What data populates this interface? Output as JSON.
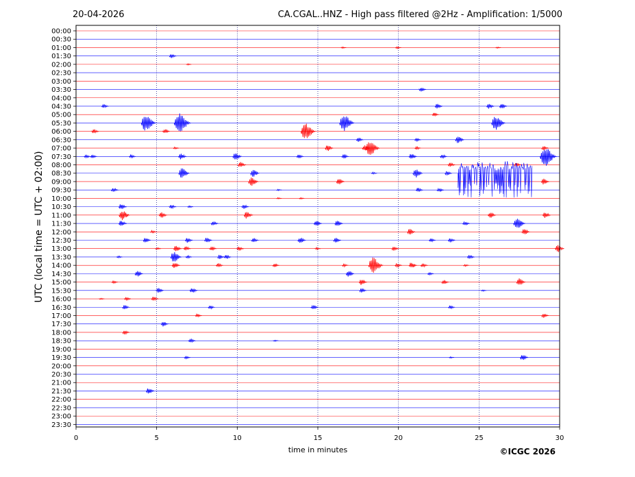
{
  "chart_data": {
    "type": "line",
    "date": "20-04-2026",
    "title": "CA.CGAL..HNZ - High pass filtered @2Hz - Amplification: 1/5000",
    "xlabel": "time in minutes",
    "ylabel": "UTC (local time = UTC + 02:00)",
    "copyright": "©ICGC 2026",
    "xlim": [
      0,
      30
    ],
    "x_ticks": [
      0,
      5,
      10,
      15,
      20,
      25,
      30
    ],
    "y_ticks": [
      "00:00",
      "00:30",
      "01:00",
      "01:30",
      "02:00",
      "02:30",
      "03:00",
      "03:30",
      "04:00",
      "04:30",
      "05:00",
      "05:30",
      "06:00",
      "06:30",
      "07:00",
      "07:30",
      "08:00",
      "08:30",
      "09:00",
      "09:30",
      "10:00",
      "10:30",
      "11:00",
      "11:30",
      "12:00",
      "12:30",
      "13:00",
      "13:30",
      "14:00",
      "14:30",
      "15:00",
      "15:30",
      "16:00",
      "16:30",
      "17:00",
      "17:30",
      "18:00",
      "18:30",
      "19:00",
      "19:30",
      "20:00",
      "20:30",
      "21:00",
      "21:30",
      "22:00",
      "22:30",
      "23:00",
      "23:30"
    ],
    "grid": {
      "x": true,
      "y": false
    },
    "trace_colors": [
      "#ff0000",
      "#0000ff"
    ],
    "events": [
      {
        "row": "01:00",
        "t": 16.6,
        "a": 2
      },
      {
        "row": "01:00",
        "t": 20.0,
        "a": 3
      },
      {
        "row": "01:00",
        "t": 26.2,
        "a": 2
      },
      {
        "row": "01:30",
        "t": 6.0,
        "a": 6
      },
      {
        "row": "02:00",
        "t": 7.0,
        "a": 2
      },
      {
        "row": "03:30",
        "t": 21.5,
        "a": 6
      },
      {
        "row": "04:30",
        "t": 1.8,
        "a": 6
      },
      {
        "row": "04:30",
        "t": 22.5,
        "a": 7
      },
      {
        "row": "04:30",
        "t": 25.7,
        "a": 7
      },
      {
        "row": "04:30",
        "t": 26.5,
        "a": 7
      },
      {
        "row": "05:00",
        "t": 22.3,
        "a": 5
      },
      {
        "row": "05:30",
        "t": 4.5,
        "a": 22
      },
      {
        "row": "05:30",
        "t": 6.6,
        "a": 26
      },
      {
        "row": "05:30",
        "t": 16.8,
        "a": 22
      },
      {
        "row": "05:30",
        "t": 26.2,
        "a": 20
      },
      {
        "row": "06:00",
        "t": 1.2,
        "a": 6
      },
      {
        "row": "06:00",
        "t": 5.6,
        "a": 6
      },
      {
        "row": "06:00",
        "t": 14.4,
        "a": 22
      },
      {
        "row": "06:30",
        "t": 17.6,
        "a": 6
      },
      {
        "row": "06:30",
        "t": 21.2,
        "a": 5
      },
      {
        "row": "06:30",
        "t": 23.8,
        "a": 10
      },
      {
        "row": "07:00",
        "t": 6.2,
        "a": 3
      },
      {
        "row": "07:00",
        "t": 15.7,
        "a": 8
      },
      {
        "row": "07:00",
        "t": 18.0,
        "a": 8
      },
      {
        "row": "07:00",
        "t": 18.4,
        "a": 20
      },
      {
        "row": "07:00",
        "t": 21.2,
        "a": 4
      },
      {
        "row": "07:00",
        "t": 29.1,
        "a": 6
      },
      {
        "row": "07:30",
        "t": 0.7,
        "a": 5
      },
      {
        "row": "07:30",
        "t": 1.1,
        "a": 5
      },
      {
        "row": "07:30",
        "t": 3.5,
        "a": 5
      },
      {
        "row": "07:30",
        "t": 6.6,
        "a": 8
      },
      {
        "row": "07:30",
        "t": 10.0,
        "a": 10
      },
      {
        "row": "07:30",
        "t": 13.9,
        "a": 6
      },
      {
        "row": "07:30",
        "t": 16.7,
        "a": 6
      },
      {
        "row": "07:30",
        "t": 20.9,
        "a": 8
      },
      {
        "row": "07:30",
        "t": 22.8,
        "a": 6
      },
      {
        "row": "07:30",
        "t": 29.3,
        "a": 26
      },
      {
        "row": "08:00",
        "t": 10.3,
        "a": 8
      },
      {
        "row": "08:00",
        "t": 23.3,
        "a": 6
      },
      {
        "row": "08:00",
        "t": 27.4,
        "a": 6
      },
      {
        "row": "08:30",
        "t": 6.7,
        "a": 14
      },
      {
        "row": "08:30",
        "t": 11.1,
        "a": 10
      },
      {
        "row": "08:30",
        "t": 18.5,
        "a": 3
      },
      {
        "row": "08:30",
        "t": 21.2,
        "a": 12
      },
      {
        "row": "08:30",
        "t": 23.1,
        "a": 6
      },
      {
        "row": "09:00",
        "t": 11.0,
        "a": 12
      },
      {
        "row": "09:00",
        "t": 16.4,
        "a": 8
      },
      {
        "row": "09:00",
        "t": 29.1,
        "a": 8
      },
      {
        "row": "09:30",
        "t": 2.4,
        "a": 6
      },
      {
        "row": "09:30",
        "t": 12.6,
        "a": 2
      },
      {
        "row": "09:30",
        "t": 21.3,
        "a": 6
      },
      {
        "row": "09:30",
        "t": 22.6,
        "a": 6
      },
      {
        "row": "10:00",
        "t": 12.6,
        "a": 2
      },
      {
        "row": "10:00",
        "t": 14.0,
        "a": 2
      },
      {
        "row": "10:30",
        "t": 2.9,
        "a": 8
      },
      {
        "row": "10:30",
        "t": 6.0,
        "a": 6
      },
      {
        "row": "10:30",
        "t": 7.1,
        "a": 3
      },
      {
        "row": "10:30",
        "t": 10.5,
        "a": 6
      },
      {
        "row": "11:00",
        "t": 3.0,
        "a": 14
      },
      {
        "row": "11:00",
        "t": 5.4,
        "a": 8
      },
      {
        "row": "11:00",
        "t": 10.7,
        "a": 10
      },
      {
        "row": "11:00",
        "t": 25.8,
        "a": 8
      },
      {
        "row": "11:00",
        "t": 29.2,
        "a": 8
      },
      {
        "row": "11:30",
        "t": 2.9,
        "a": 8
      },
      {
        "row": "11:30",
        "t": 8.6,
        "a": 6
      },
      {
        "row": "11:30",
        "t": 15.0,
        "a": 8
      },
      {
        "row": "11:30",
        "t": 16.3,
        "a": 8
      },
      {
        "row": "11:30",
        "t": 24.2,
        "a": 6
      },
      {
        "row": "11:30",
        "t": 27.5,
        "a": 16
      },
      {
        "row": "12:00",
        "t": 4.8,
        "a": 4
      },
      {
        "row": "12:00",
        "t": 20.8,
        "a": 8
      },
      {
        "row": "12:00",
        "t": 27.9,
        "a": 8
      },
      {
        "row": "12:30",
        "t": 4.4,
        "a": 7
      },
      {
        "row": "12:30",
        "t": 7.0,
        "a": 7
      },
      {
        "row": "12:30",
        "t": 8.2,
        "a": 7
      },
      {
        "row": "12:30",
        "t": 11.1,
        "a": 6
      },
      {
        "row": "12:30",
        "t": 14.0,
        "a": 8
      },
      {
        "row": "12:30",
        "t": 16.2,
        "a": 7
      },
      {
        "row": "12:30",
        "t": 22.1,
        "a": 5
      },
      {
        "row": "12:30",
        "t": 23.3,
        "a": 6
      },
      {
        "row": "13:00",
        "t": 5.1,
        "a": 3
      },
      {
        "row": "13:00",
        "t": 6.3,
        "a": 8
      },
      {
        "row": "13:00",
        "t": 6.9,
        "a": 6
      },
      {
        "row": "13:00",
        "t": 8.5,
        "a": 6
      },
      {
        "row": "13:00",
        "t": 10.2,
        "a": 6
      },
      {
        "row": "13:00",
        "t": 15.0,
        "a": 3
      },
      {
        "row": "13:00",
        "t": 19.8,
        "a": 6
      },
      {
        "row": "13:00",
        "t": 30.0,
        "a": 10
      },
      {
        "row": "13:30",
        "t": 2.7,
        "a": 3
      },
      {
        "row": "13:30",
        "t": 6.2,
        "a": 14
      },
      {
        "row": "13:30",
        "t": 7.0,
        "a": 4
      },
      {
        "row": "13:30",
        "t": 9.0,
        "a": 6
      },
      {
        "row": "13:30",
        "t": 9.4,
        "a": 6
      },
      {
        "row": "13:30",
        "t": 24.5,
        "a": 6
      },
      {
        "row": "14:00",
        "t": 6.2,
        "a": 8
      },
      {
        "row": "14:00",
        "t": 8.9,
        "a": 6
      },
      {
        "row": "14:00",
        "t": 12.4,
        "a": 5
      },
      {
        "row": "14:00",
        "t": 16.7,
        "a": 4
      },
      {
        "row": "14:00",
        "t": 18.6,
        "a": 22
      },
      {
        "row": "14:00",
        "t": 20.0,
        "a": 6
      },
      {
        "row": "14:00",
        "t": 20.9,
        "a": 8
      },
      {
        "row": "14:00",
        "t": 21.6,
        "a": 6
      },
      {
        "row": "14:00",
        "t": 24.2,
        "a": 3
      },
      {
        "row": "14:30",
        "t": 3.9,
        "a": 8
      },
      {
        "row": "14:30",
        "t": 17.0,
        "a": 8
      },
      {
        "row": "14:30",
        "t": 22.0,
        "a": 4
      },
      {
        "row": "15:00",
        "t": 2.4,
        "a": 4
      },
      {
        "row": "15:00",
        "t": 17.8,
        "a": 8
      },
      {
        "row": "15:00",
        "t": 22.9,
        "a": 6
      },
      {
        "row": "15:00",
        "t": 27.6,
        "a": 10
      },
      {
        "row": "15:30",
        "t": 5.2,
        "a": 7
      },
      {
        "row": "15:30",
        "t": 7.3,
        "a": 7
      },
      {
        "row": "15:30",
        "t": 17.8,
        "a": 6
      },
      {
        "row": "15:30",
        "t": 25.3,
        "a": 2
      },
      {
        "row": "16:00",
        "t": 1.6,
        "a": 2
      },
      {
        "row": "16:00",
        "t": 3.2,
        "a": 5
      },
      {
        "row": "16:00",
        "t": 4.9,
        "a": 6
      },
      {
        "row": "16:30",
        "t": 3.1,
        "a": 6
      },
      {
        "row": "16:30",
        "t": 8.4,
        "a": 5
      },
      {
        "row": "16:30",
        "t": 14.8,
        "a": 7
      },
      {
        "row": "16:30",
        "t": 23.3,
        "a": 5
      },
      {
        "row": "17:00",
        "t": 7.6,
        "a": 5
      },
      {
        "row": "17:00",
        "t": 29.1,
        "a": 6
      },
      {
        "row": "17:30",
        "t": 5.5,
        "a": 7
      },
      {
        "row": "18:00",
        "t": 3.1,
        "a": 6
      },
      {
        "row": "18:30",
        "t": 7.2,
        "a": 6
      },
      {
        "row": "18:30",
        "t": 12.4,
        "a": 2
      },
      {
        "row": "19:30",
        "t": 6.9,
        "a": 4
      },
      {
        "row": "19:30",
        "t": 23.3,
        "a": 2
      },
      {
        "row": "19:30",
        "t": 27.8,
        "a": 8
      },
      {
        "row": "21:30",
        "t": 4.6,
        "a": 8
      }
    ],
    "bursts": [
      {
        "row": "08:30",
        "t_start": 23.7,
        "t_end": 28.3,
        "a": 36
      }
    ]
  }
}
